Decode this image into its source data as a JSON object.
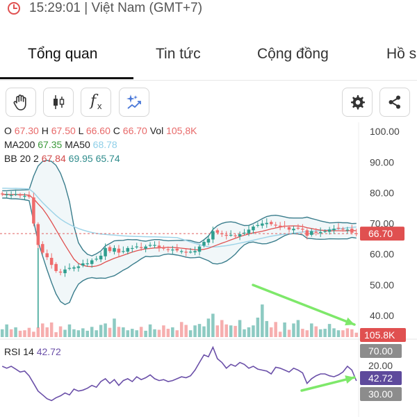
{
  "header": {
    "time_text": "15:29:01 | Việt Nam (GMT+7)",
    "icon": "clock-icon"
  },
  "tabs": [
    {
      "label": "Tổng quan",
      "active": true
    },
    {
      "label": "Tin tức",
      "active": false
    },
    {
      "label": "Cộng đồng",
      "active": false
    },
    {
      "label": "Hồ s",
      "active": false
    }
  ],
  "toolbar": {
    "left_tools": [
      "hand-icon",
      "candlestick-icon",
      "function-icon",
      "sparkle-chart-icon"
    ],
    "function_label": "f",
    "function_sub": "x",
    "right_tools": [
      "settings-icon",
      "share-icon"
    ]
  },
  "ohlc": {
    "o_label": "O",
    "o_value": "67.30",
    "h_label": "H",
    "h_value": "67.50",
    "l_label": "L",
    "l_value": "66.60",
    "c_label": "C",
    "c_value": "66.70",
    "vol_label": "Vol",
    "vol_value": "105,8K"
  },
  "ma": {
    "ma200_label": "MA200",
    "ma200_value": "67.35",
    "ma50_label": "MA50",
    "ma50_value": "68.78"
  },
  "bb": {
    "label": "BB 20 2",
    "mid": "67.84",
    "upper": "69.95",
    "lower": "65.74"
  },
  "rsi": {
    "label": "RSI 14",
    "value": "42.72"
  },
  "colors": {
    "up": "#2f9e8f",
    "down": "#ef6b6b",
    "bb": "#3a7d8c",
    "ma50": "#9fd4e8",
    "ma200": "#e05050",
    "rsi": "#6a4fa8",
    "arrow": "#7ee86a"
  },
  "chart_data": {
    "type": "candlestick",
    "price_axis": {
      "ticks": [
        "100.00",
        "90.00",
        "80.00",
        "70.00",
        "60.00",
        "50.00",
        "40.00"
      ],
      "range": [
        35,
        103
      ]
    },
    "current_price_label": "66.70",
    "current_volume_label": "105.8K",
    "rsi_axis": {
      "labels": [
        "70.00",
        "20.00",
        "30.00"
      ]
    },
    "rsi_current_label": "42.72",
    "closes": [
      79.5,
      79.5,
      79.3,
      79.6,
      79.2,
      79.0,
      78.7,
      70.0,
      63.0,
      60.5,
      59.0,
      56.5,
      54.5,
      54.0,
      55.0,
      55.5,
      55.7,
      56.0,
      57.0,
      57.0,
      58.0,
      58.5,
      59.5,
      62.0,
      61.0,
      62.0,
      60.5,
      61.0,
      62.0,
      62.0,
      62.5,
      62.0,
      62.5,
      63.0,
      63.0,
      62.0,
      61.8,
      61.5,
      61.5,
      61.2,
      61.0,
      60.5,
      60.8,
      61.0,
      62.5,
      64.0,
      65.0,
      67.5,
      67.0,
      66.5,
      66.0,
      66.3,
      66.0,
      66.5,
      67.0,
      68.0,
      69.0,
      69.5,
      70.0,
      70.2,
      69.8,
      69.5,
      69.0,
      69.0,
      68.0,
      68.3,
      68.5,
      68.0,
      66.0,
      67.5,
      67.0,
      67.2,
      67.5,
      68.0,
      68.3,
      68.5,
      68.2,
      68.0,
      67.0,
      66.7
    ],
    "volumes": [
      0.16,
      0.26,
      0.16,
      0.2,
      0.13,
      0.14,
      0.19,
      0.11,
      0.2,
      0.28,
      0.2,
      0.3,
      0.1,
      0.22,
      0.15,
      0.26,
      0.16,
      0.14,
      0.18,
      0.13,
      0.21,
      0.14,
      0.25,
      0.28,
      0.19,
      0.38,
      0.21,
      0.2,
      0.14,
      0.17,
      0.14,
      0.21,
      0.13,
      0.26,
      0.16,
      0.15,
      0.24,
      0.17,
      0.2,
      0.14,
      0.31,
      0.25,
      0.14,
      0.24,
      0.27,
      0.22,
      0.38,
      0.48,
      0.24,
      0.35,
      0.26,
      0.24,
      0.23,
      0.35,
      0.16,
      0.2,
      0.24,
      0.4,
      0.67,
      0.33,
      0.2,
      0.31,
      0.11,
      0.3,
      0.15,
      0.28,
      0.35,
      0.17,
      0.14,
      0.28,
      0.22,
      0.16,
      0.17,
      0.27,
      0.18,
      0.14,
      0.14,
      0.18,
      0.16,
      0.09
    ],
    "rsi": [
      58,
      56,
      58,
      55,
      52,
      53,
      48,
      40,
      32,
      28,
      24,
      22,
      25,
      27,
      30,
      28,
      34,
      32,
      33,
      35,
      38,
      36,
      42,
      45,
      40,
      44,
      38,
      43,
      45,
      42,
      47,
      44,
      46,
      49,
      45,
      43,
      44,
      42,
      43,
      45,
      47,
      46,
      48,
      54,
      62,
      70,
      68,
      78,
      66,
      62,
      56,
      60,
      58,
      62,
      60,
      56,
      58,
      55,
      54,
      53,
      50,
      57,
      56,
      54,
      52,
      56,
      54,
      51,
      40,
      45,
      48,
      50,
      50,
      48,
      47,
      49,
      52,
      58,
      54,
      42.72
    ]
  }
}
